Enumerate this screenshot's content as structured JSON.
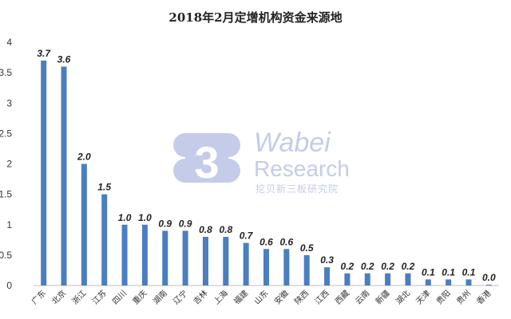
{
  "chart_data": {
    "type": "bar",
    "title": "2018年2月定增机构资金来源地",
    "categories": [
      "广东",
      "北京",
      "浙江",
      "江苏",
      "四川",
      "重庆",
      "湖南",
      "辽宁",
      "吉林",
      "上海",
      "福建",
      "山东",
      "安徽",
      "陕西",
      "江西",
      "西藏",
      "云南",
      "新疆",
      "湖北",
      "天津",
      "贵阳",
      "贵州",
      "香港"
    ],
    "values": [
      3.7,
      3.6,
      2.0,
      1.5,
      1.0,
      1.0,
      0.9,
      0.9,
      0.8,
      0.8,
      0.7,
      0.6,
      0.6,
      0.5,
      0.3,
      0.2,
      0.2,
      0.2,
      0.2,
      0.1,
      0.1,
      0.1,
      0.0
    ],
    "value_labels": [
      "3.7",
      "3.6",
      "2.0",
      "1.5",
      "1.0",
      "1.0",
      "0.9",
      "0.9",
      "0.8",
      "0.8",
      "0.7",
      "0.6",
      "0.6",
      "0.5",
      "0.3",
      "0.2",
      "0.2",
      "0.2",
      "0.2",
      "0.1",
      "0.1",
      "0.1",
      "0.0"
    ],
    "ylim": [
      0,
      4
    ],
    "yticks": [
      "0",
      "0.5",
      "1",
      "1.5",
      "2",
      "2.5",
      "3",
      "3.5",
      "4"
    ],
    "xlabel": "",
    "ylabel": "",
    "grid": false,
    "legend": "none",
    "bar_color": "#4a7ec0"
  },
  "watermark": {
    "logo_char": "3",
    "brand_line1": "Wabei",
    "brand_line2": "Research",
    "brand_cn": "挖贝新三板研究院"
  }
}
